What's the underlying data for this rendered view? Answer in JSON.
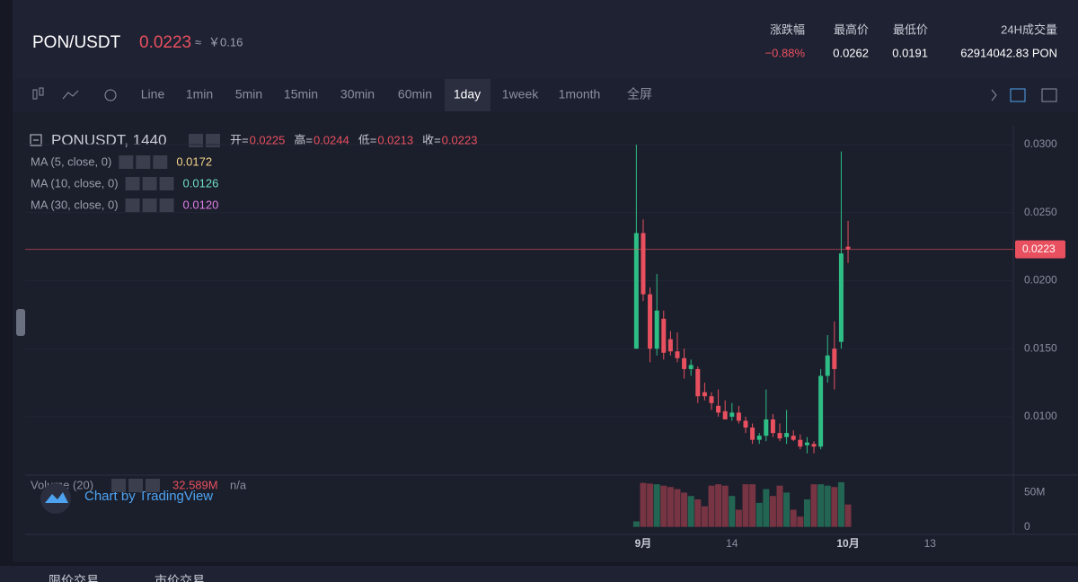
{
  "header": {
    "pair": "PON/USDT",
    "price": "0.0223",
    "approx": "≈",
    "cny": "￥0.16",
    "stats": [
      {
        "label": "涨跌幅",
        "value": "−0.88%"
      },
      {
        "label": "最高价",
        "value": "0.0262"
      },
      {
        "label": "最低价",
        "value": "0.0191"
      },
      {
        "label": "24H成交量",
        "value": "62914042.83 PON"
      }
    ]
  },
  "toolbar": {
    "intervals": [
      "Line",
      "1min",
      "5min",
      "15min",
      "30min",
      "60min",
      "1day",
      "1week",
      "1month",
      "全屏"
    ],
    "active": "1day"
  },
  "legend": {
    "symbol": "PONUSDT, 1440",
    "ohlc": [
      {
        "label": "开=",
        "value": "0.0225"
      },
      {
        "label": "高=",
        "value": "0.0244"
      },
      {
        "label": "低=",
        "value": "0.0213"
      },
      {
        "label": "收=",
        "value": "0.0223"
      }
    ],
    "ma": [
      {
        "label": "MA (5, close, 0)",
        "value": "0.0172",
        "color": "#f5d58a"
      },
      {
        "label": "MA (10, close, 0)",
        "value": "0.0126",
        "color": "#6fe0c8"
      },
      {
        "label": "MA (30, close, 0)",
        "value": "0.0120",
        "color": "#e07ee8"
      }
    ],
    "volume_label": "Volume (20)",
    "volume_na": "n/a",
    "watermark": "Chart by TradingView"
  },
  "bottom_tabs": [
    "限价交易",
    "市价交易"
  ],
  "chart_data": {
    "type": "candlestick",
    "up_color": "#2ebd85",
    "down_color": "#e8505f",
    "x": [
      -1,
      0,
      1,
      2,
      3,
      4,
      5,
      6,
      7,
      8,
      9,
      10,
      11,
      12,
      13,
      14,
      15,
      16,
      17,
      18,
      19,
      20,
      21,
      22,
      23,
      24,
      25,
      26,
      27,
      28,
      29,
      30
    ],
    "open": [
      0.015,
      0.0235,
      0.019,
      0.015,
      0.0172,
      0.0157,
      0.0148,
      0.0143,
      0.0135,
      0.0135,
      0.0118,
      0.0115,
      0.0108,
      0.0104,
      0.01,
      0.0103,
      0.0097,
      0.0092,
      0.0083,
      0.0086,
      0.0098,
      0.0088,
      0.0085,
      0.0086,
      0.0083,
      0.0079,
      0.008,
      0.0078,
      0.013,
      0.015,
      0.0155,
      0.0225
    ],
    "high": [
      0.03,
      0.0245,
      0.0195,
      0.0205,
      0.0178,
      0.0163,
      0.0162,
      0.015,
      0.0142,
      0.0137,
      0.0125,
      0.0118,
      0.012,
      0.0112,
      0.011,
      0.0108,
      0.01,
      0.0095,
      0.0088,
      0.012,
      0.0102,
      0.0095,
      0.0105,
      0.009,
      0.0087,
      0.0085,
      0.0082,
      0.0135,
      0.016,
      0.017,
      0.0295,
      0.0244
    ],
    "low": [
      0.015,
      0.0185,
      0.014,
      0.0145,
      0.0142,
      0.0145,
      0.014,
      0.0128,
      0.013,
      0.011,
      0.0112,
      0.0105,
      0.01,
      0.0098,
      0.0097,
      0.0095,
      0.0088,
      0.008,
      0.008,
      0.0082,
      0.0085,
      0.0082,
      0.008,
      0.0082,
      0.0076,
      0.0073,
      0.0073,
      0.0076,
      0.0125,
      0.012,
      0.015,
      0.0213
    ],
    "close": [
      0.0235,
      0.019,
      0.015,
      0.0178,
      0.0147,
      0.0148,
      0.0143,
      0.0135,
      0.0138,
      0.0115,
      0.0115,
      0.011,
      0.0103,
      0.0098,
      0.0103,
      0.0097,
      0.0092,
      0.0083,
      0.0086,
      0.0098,
      0.0088,
      0.0084,
      0.0088,
      0.0083,
      0.0078,
      0.0081,
      0.0078,
      0.013,
      0.0145,
      0.0135,
      0.022,
      0.0223
    ],
    "volume": [
      8000000,
      64000000,
      63000000,
      62000000,
      60000000,
      58000000,
      55000000,
      50000000,
      45000000,
      40000000,
      30000000,
      60000000,
      62000000,
      60000000,
      45000000,
      25000000,
      62000000,
      62000000,
      35000000,
      55000000,
      45000000,
      60000000,
      50000000,
      25000000,
      15000000,
      40000000,
      62000000,
      62000000,
      60000000,
      58000000,
      65000000,
      32589000
    ],
    "volume_last_label": "32.589M",
    "last_price": 0.0223,
    "xlim": [
      -90.5,
      54.2
    ],
    "xticks": [
      {
        "value": 0,
        "label": "9月"
      },
      {
        "value": 13,
        "label": "14"
      },
      {
        "value": 30,
        "label": "10月"
      },
      {
        "value": 42,
        "label": "13"
      }
    ],
    "ylim": [
      0.00577,
      0.03139
    ],
    "yticks": [
      {
        "value": 0.03,
        "label": "0.0300"
      },
      {
        "value": 0.025,
        "label": "0.0250"
      },
      {
        "value": 0.02,
        "label": "0.0200"
      },
      {
        "value": 0.015,
        "label": "0.0150"
      },
      {
        "value": 0.01,
        "label": "0.0100"
      }
    ],
    "vlim": [
      -7000000,
      74000000
    ],
    "vticks": [
      {
        "value": 50000000,
        "label": "50M"
      },
      0
    ]
  }
}
